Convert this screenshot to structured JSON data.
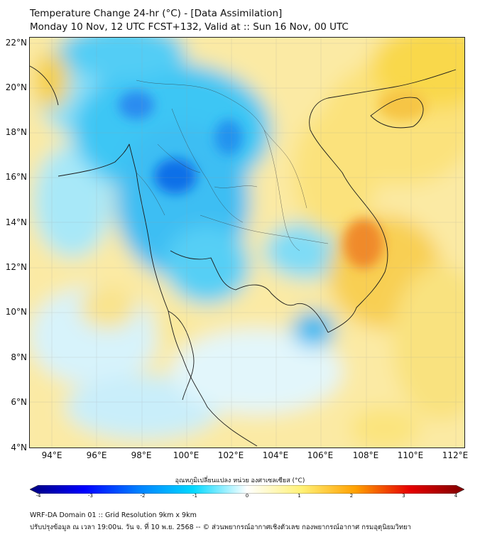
{
  "header": {
    "title_line1": "Temperature Change 24-hr (°C) - [Data Assimilation]",
    "title_line2": "Monday 10 Nov, 12 UTC FCST+132, Valid at :: Sun 16 Nov, 00 UTC"
  },
  "map": {
    "lat_labels": [
      "22°N",
      "20°N",
      "18°N",
      "16°N",
      "14°N",
      "12°N",
      "10°N",
      "8°N",
      "6°N",
      "4°N"
    ],
    "lon_labels": [
      "94°E",
      "96°E",
      "98°E",
      "100°E",
      "102°E",
      "104°E",
      "106°E",
      "108°E",
      "110°E",
      "112°E"
    ]
  },
  "colorbar": {
    "title": "อุณหภูมิเปลี่ยนแปลง หน่วย องศาเซลเซียส (°C)",
    "ticks": [
      "-4",
      "-3",
      "-2",
      "-1",
      "0",
      "1",
      "2",
      "3",
      "4"
    ],
    "min": -4,
    "max": 4,
    "colors": [
      "#00007f",
      "#0000ff",
      "#0080ff",
      "#00d8ff",
      "#ffffff",
      "#fff176",
      "#ffa000",
      "#e60000",
      "#7f0000"
    ]
  },
  "footer": {
    "line1": "WRF-DA Domain 01 :: Grid Resolution 9km x 9km",
    "line2": "ปรับปรุงข้อมูล ณ เวลา 19:00น. วัน จ. ที่ 10 พ.ย. 2568 -- © ส่วนพยากรณ์อากาศเชิงตัวเลข กองพยากรณ์อากาศ กรมอุตุนิยมวิทยา"
  }
}
